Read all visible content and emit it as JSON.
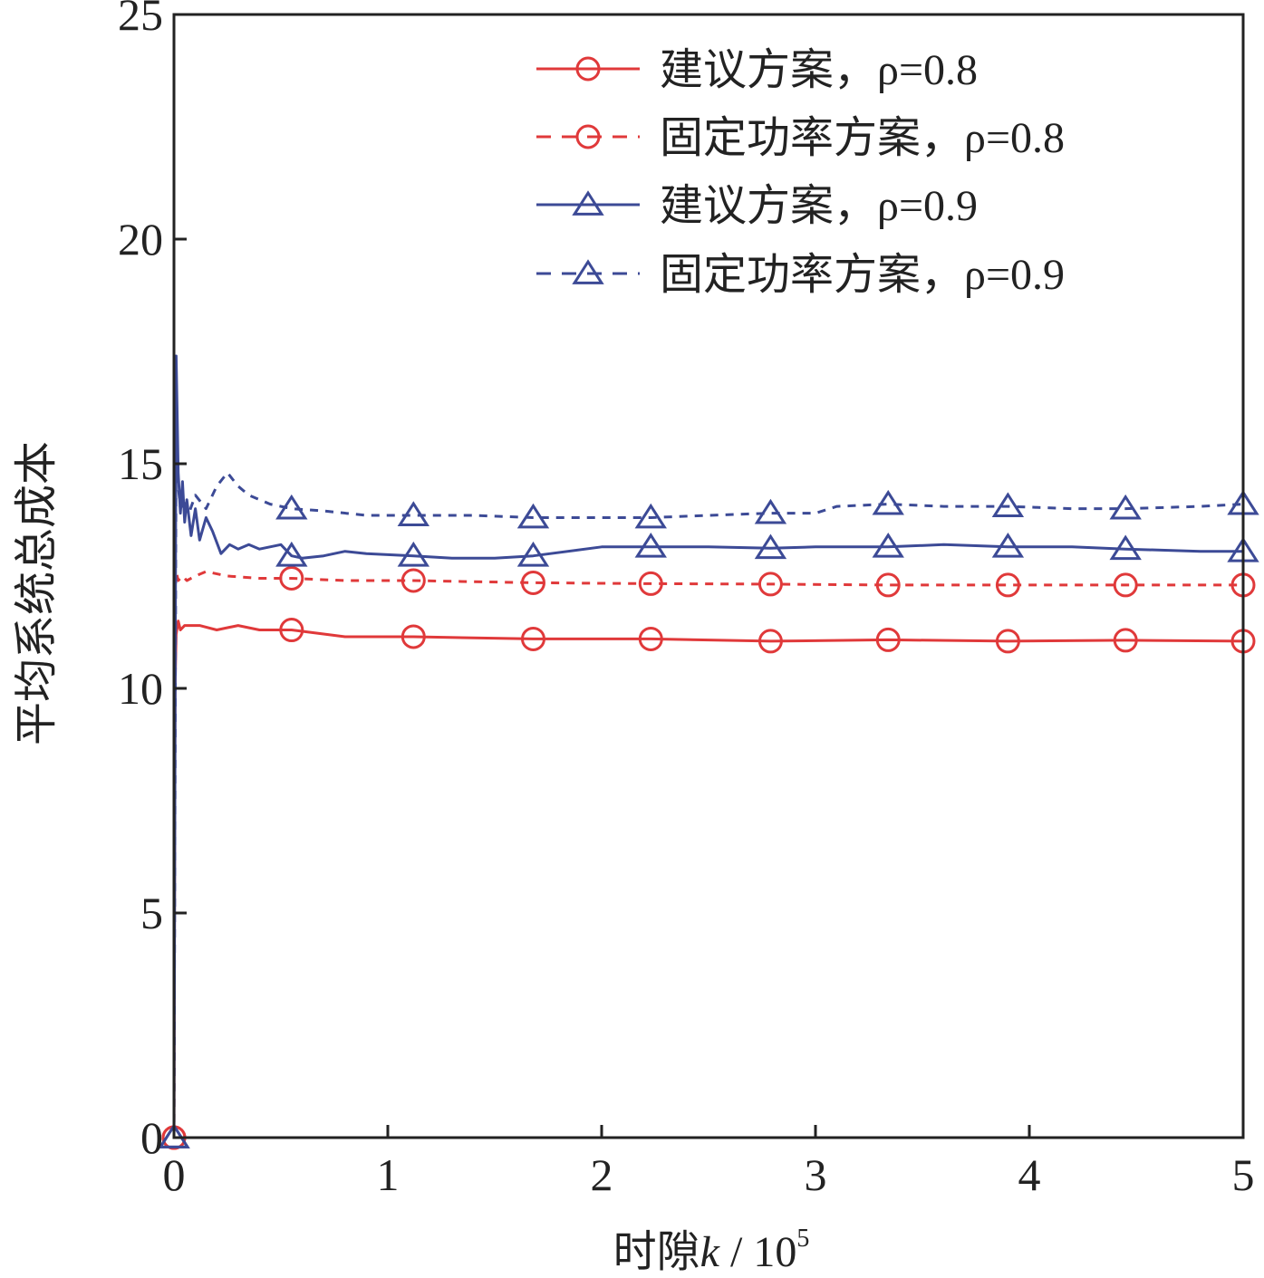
{
  "chart_data": {
    "type": "line",
    "xlabel": "时隙k / 10^5",
    "ylabel": "平均系统总成本",
    "xlim": [
      0,
      5
    ],
    "ylim": [
      0,
      25
    ],
    "xticks": [
      0,
      1,
      2,
      3,
      4,
      5
    ],
    "yticks": [
      0,
      5,
      10,
      15,
      20,
      25
    ],
    "xtick_labels": [
      "0",
      "1",
      "2",
      "3",
      "4",
      "5"
    ],
    "ytick_labels": [
      "0",
      "5",
      "10",
      "15",
      "20",
      "25"
    ],
    "grid": false,
    "legend_position": "top-right",
    "series": [
      {
        "name": "建议方案，ρ=0.8",
        "color": "#e0393a",
        "dash": "solid",
        "marker": "circle",
        "x": [
          0,
          0.005,
          0.01,
          0.02,
          0.03,
          0.05,
          0.08,
          0.12,
          0.2,
          0.3,
          0.4,
          0.55,
          0.8,
          1.12,
          1.68,
          2.23,
          2.79,
          3.34,
          3.9,
          4.45,
          5.0
        ],
        "y": [
          0,
          10.0,
          11.2,
          11.5,
          11.3,
          11.4,
          11.4,
          11.4,
          11.3,
          11.4,
          11.3,
          11.3,
          11.15,
          11.15,
          11.1,
          11.1,
          11.05,
          11.08,
          11.05,
          11.07,
          11.05
        ]
      },
      {
        "name": "固定功率方案，ρ=0.8",
        "color": "#e0393a",
        "dash": "dashed",
        "marker": "circle",
        "x": [
          0,
          0.005,
          0.01,
          0.02,
          0.04,
          0.06,
          0.1,
          0.15,
          0.25,
          0.4,
          0.55,
          0.8,
          1.12,
          1.68,
          2.23,
          2.79,
          3.34,
          3.9,
          4.45,
          5.0
        ],
        "y": [
          0,
          12.2,
          12.6,
          12.4,
          12.5,
          12.4,
          12.5,
          12.6,
          12.5,
          12.45,
          12.45,
          12.4,
          12.4,
          12.35,
          12.33,
          12.32,
          12.3,
          12.3,
          12.3,
          12.3
        ]
      },
      {
        "name": "建议方案，ρ=0.9",
        "color": "#3c4a96",
        "dash": "solid",
        "marker": "triangle",
        "x": [
          0,
          0.01,
          0.02,
          0.03,
          0.04,
          0.05,
          0.06,
          0.08,
          0.1,
          0.12,
          0.15,
          0.18,
          0.22,
          0.26,
          0.3,
          0.35,
          0.4,
          0.5,
          0.55,
          0.6,
          0.7,
          0.8,
          0.9,
          1.12,
          1.3,
          1.5,
          1.68,
          2.0,
          2.23,
          2.5,
          2.79,
          3.0,
          3.34,
          3.6,
          3.9,
          4.2,
          4.45,
          4.8,
          5.0
        ],
        "y": [
          0,
          17.4,
          14.8,
          13.9,
          14.6,
          13.7,
          14.2,
          13.4,
          14.0,
          13.3,
          13.8,
          13.5,
          13.0,
          13.2,
          13.1,
          13.2,
          13.1,
          13.2,
          12.95,
          12.9,
          12.95,
          13.05,
          13.0,
          12.95,
          12.9,
          12.9,
          12.95,
          13.15,
          13.15,
          13.15,
          13.12,
          13.15,
          13.15,
          13.2,
          13.15,
          13.15,
          13.1,
          13.05,
          13.05
        ]
      },
      {
        "name": "固定功率方案，ρ=0.9",
        "color": "#3c4a96",
        "dash": "dashed",
        "marker": "triangle",
        "x": [
          0,
          0.01,
          0.02,
          0.03,
          0.05,
          0.07,
          0.1,
          0.15,
          0.2,
          0.25,
          0.3,
          0.35,
          0.45,
          0.55,
          0.7,
          0.9,
          1.12,
          1.4,
          1.68,
          2.0,
          2.23,
          2.5,
          2.79,
          3.0,
          3.1,
          3.34,
          3.6,
          3.9,
          4.2,
          4.45,
          4.8,
          5.0
        ],
        "y": [
          0,
          15.6,
          14.5,
          14.0,
          14.2,
          13.9,
          14.3,
          14.0,
          14.5,
          14.8,
          14.5,
          14.3,
          14.1,
          14.0,
          13.95,
          13.85,
          13.85,
          13.85,
          13.8,
          13.8,
          13.8,
          13.85,
          13.9,
          13.9,
          14.05,
          14.1,
          14.05,
          14.05,
          14.0,
          14.0,
          14.05,
          14.1
        ]
      }
    ]
  }
}
